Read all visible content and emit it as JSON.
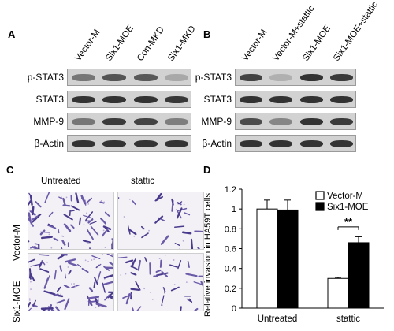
{
  "panel_a": {
    "letter": "A",
    "lanes": [
      "Vector-M",
      "Six1-MOE",
      "Con-MKD",
      "Six1-MKD"
    ],
    "rows": [
      {
        "label": "p-STAT3",
        "intensities": [
          0.55,
          0.75,
          0.72,
          0.25
        ]
      },
      {
        "label": "STAT3",
        "intensities": [
          0.95,
          0.95,
          0.95,
          0.92
        ]
      },
      {
        "label": "MMP-9",
        "intensities": [
          0.55,
          0.9,
          0.85,
          0.5
        ]
      },
      {
        "label": "β-Actin",
        "intensities": [
          0.95,
          0.95,
          0.95,
          0.95
        ]
      }
    ]
  },
  "panel_b": {
    "letter": "B",
    "lanes": [
      "Vector-M",
      "Vector-M+stattic",
      "Six1-MOE",
      "Six1-MOE+stattic"
    ],
    "rows": [
      {
        "label": "p-STAT3",
        "intensities": [
          0.85,
          0.2,
          0.95,
          0.9
        ]
      },
      {
        "label": "STAT3",
        "intensities": [
          0.95,
          0.95,
          0.95,
          0.95
        ]
      },
      {
        "label": "MMP-9",
        "intensities": [
          0.8,
          0.45,
          0.95,
          0.9
        ]
      },
      {
        "label": "β-Actin",
        "intensities": [
          0.95,
          0.95,
          0.95,
          0.95
        ]
      }
    ]
  },
  "panel_c": {
    "letter": "C",
    "col_headers": [
      "Untreated",
      "stattic"
    ],
    "row_labels": [
      "Vector-M",
      "Six1-MOE"
    ],
    "densities": [
      [
        0.9,
        0.35
      ],
      [
        1.0,
        0.55
      ]
    ]
  },
  "panel_d": {
    "letter": "D"
  },
  "chart_data": {
    "type": "bar",
    "title": "",
    "categories": [
      "Untreated",
      "stattic"
    ],
    "series": [
      {
        "name": "Vector-M",
        "values": [
          1.0,
          0.3
        ],
        "errors": [
          0.09,
          0.01
        ],
        "color": "#ffffff"
      },
      {
        "name": "Six1-MOE",
        "values": [
          0.99,
          0.66
        ],
        "errors": [
          0.1,
          0.06
        ],
        "color": "#000000"
      }
    ],
    "ylabel": "Relative invasion in HA59T cells",
    "xlabel": "",
    "ylim": [
      0,
      1.2
    ],
    "yticks": [
      "0",
      "0.2",
      "0.4",
      "0.6",
      "0.8",
      "1",
      "1.2"
    ],
    "annotations": [
      {
        "text": "**",
        "category": "stattic"
      }
    ],
    "legend_position": "top-right"
  }
}
